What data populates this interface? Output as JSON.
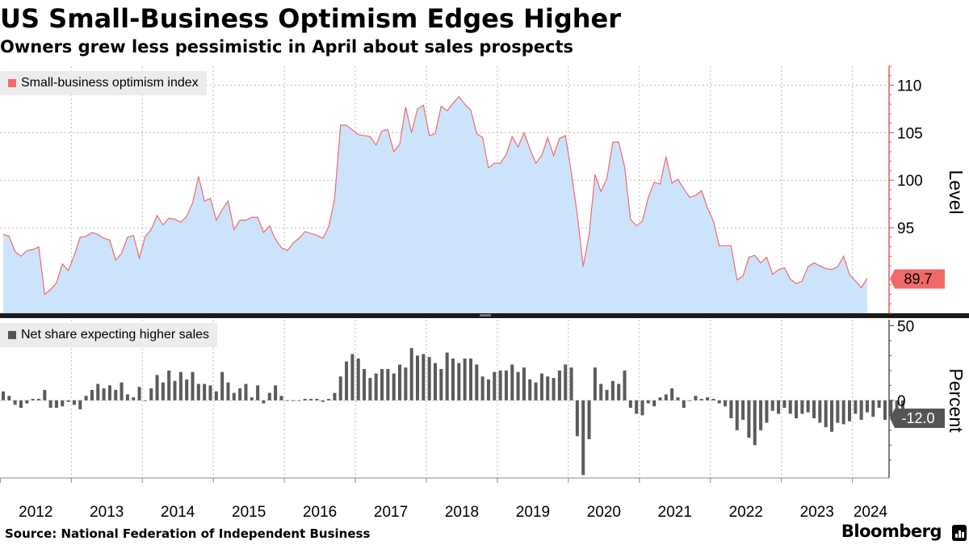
{
  "title": "US Small-Business Optimism Edges Higher",
  "subtitle": "Owners grew less pessimistic in April about sales prospects",
  "source": "Source: National Federation of Independent Business",
  "brand": "Bloomberg",
  "colors": {
    "line": "#f06a6a",
    "area": "#cce4fb",
    "bar": "#5b5b5b",
    "last_top_bg": "#f06a6a",
    "last_bottom_bg": "#555555",
    "grid": "#bbbbbb",
    "axis": "#e65a5a"
  },
  "chart_data": [
    {
      "type": "area",
      "series": [
        {
          "name": "Small-business optimism index",
          "start": "2012-01",
          "values": [
            94.3,
            94.1,
            92.5,
            92.0,
            92.6,
            92.7,
            93.0,
            88.0,
            88.5,
            89.2,
            91.2,
            90.5,
            92.1,
            94.0,
            94.1,
            94.5,
            94.3,
            93.9,
            93.7,
            91.6,
            92.3,
            94.0,
            94.2,
            91.8,
            94.1,
            94.8,
            96.3,
            95.3,
            96.0,
            95.9,
            95.6,
            96.2,
            97.6,
            100.4,
            97.8,
            98.1,
            95.8,
            96.9,
            97.8,
            94.8,
            95.8,
            95.8,
            96.1,
            96.1,
            94.5,
            95.2,
            93.8,
            92.9,
            92.6,
            93.4,
            93.9,
            94.6,
            94.4,
            94.2,
            93.9,
            95.1,
            98.1,
            105.8,
            105.8,
            105.3,
            104.8,
            104.7,
            104.6,
            103.7,
            105.2,
            105.3,
            103.0,
            103.8,
            107.7,
            105.0,
            107.5,
            107.9,
            104.7,
            104.9,
            107.8,
            107.3,
            108.1,
            108.8,
            108.0,
            107.4,
            104.9,
            104.5,
            101.3,
            101.8,
            101.8,
            102.7,
            104.6,
            103.5,
            105.0,
            103.3,
            101.8,
            102.6,
            104.5,
            102.6,
            104.4,
            104.7,
            100.8,
            96.4,
            90.9,
            94.3,
            100.6,
            98.8,
            100.2,
            104.0,
            104.0,
            101.4,
            95.9,
            95.2,
            95.7,
            98.2,
            99.8,
            99.6,
            102.5,
            99.7,
            100.1,
            99.1,
            98.2,
            98.4,
            98.9,
            97.1,
            95.7,
            93.1,
            93.1,
            93.1,
            89.5,
            89.9,
            91.9,
            92.1,
            91.3,
            91.9,
            90.1,
            90.6,
            90.8,
            89.6,
            89.1,
            89.4,
            90.9,
            91.3,
            91.0,
            90.7,
            90.6,
            90.9,
            92.0,
            90.1,
            89.4,
            88.7,
            89.7
          ]
        }
      ],
      "ylim": [
        86,
        112
      ],
      "yticks": [
        95,
        100,
        105,
        110
      ],
      "ylabel": "Level",
      "last_value_label": "89.7"
    },
    {
      "type": "bar",
      "series": [
        {
          "name": "Net share expecting higher sales",
          "start": "2012-01",
          "values": [
            6,
            3,
            -3,
            -5,
            -2,
            1,
            1,
            7,
            -5,
            -5,
            -4,
            -1,
            -3,
            -6,
            3,
            7,
            11,
            8,
            10,
            7,
            12,
            4,
            2,
            9,
            0,
            8,
            17,
            12,
            20,
            13,
            19,
            14,
            19,
            11,
            11,
            10,
            6,
            19,
            12,
            5,
            8,
            11,
            2,
            10,
            -2,
            5,
            10,
            3,
            0,
            0,
            0,
            1,
            1,
            1,
            -1,
            1,
            5,
            16,
            26,
            31,
            28,
            21,
            15,
            18,
            21,
            21,
            18,
            24,
            22,
            35,
            30,
            31,
            29,
            25,
            21,
            32,
            28,
            25,
            28,
            28,
            24,
            16,
            14,
            19,
            20,
            20,
            24,
            19,
            22,
            14,
            12,
            18,
            16,
            15,
            20,
            24,
            22,
            -24,
            -50,
            -26,
            22,
            11,
            7,
            13,
            11,
            20,
            -5,
            -9,
            -10,
            -2,
            -4,
            2,
            4,
            8,
            2,
            -5,
            0,
            3,
            1,
            2,
            1,
            -2,
            -4,
            -12,
            -20,
            -13,
            -25,
            -30,
            -20,
            -15,
            -7,
            -9,
            -5,
            -9,
            -12,
            -9,
            -8,
            -12,
            -15,
            -18,
            -21,
            -15,
            -16,
            -14,
            -9,
            -13,
            -8,
            -11,
            -5,
            -13,
            -11,
            -12,
            -12
          ]
        }
      ],
      "ylim": [
        -52,
        54
      ],
      "yticks": [
        0,
        50
      ],
      "ylabel": "Percent",
      "last_value_label": "-12.0"
    }
  ],
  "x_axis": {
    "tick_labels": [
      "2012",
      "2013",
      "2014",
      "2015",
      "2016",
      "2017",
      "2018",
      "2019",
      "2020",
      "2021",
      "2022",
      "2023",
      "2024"
    ]
  }
}
